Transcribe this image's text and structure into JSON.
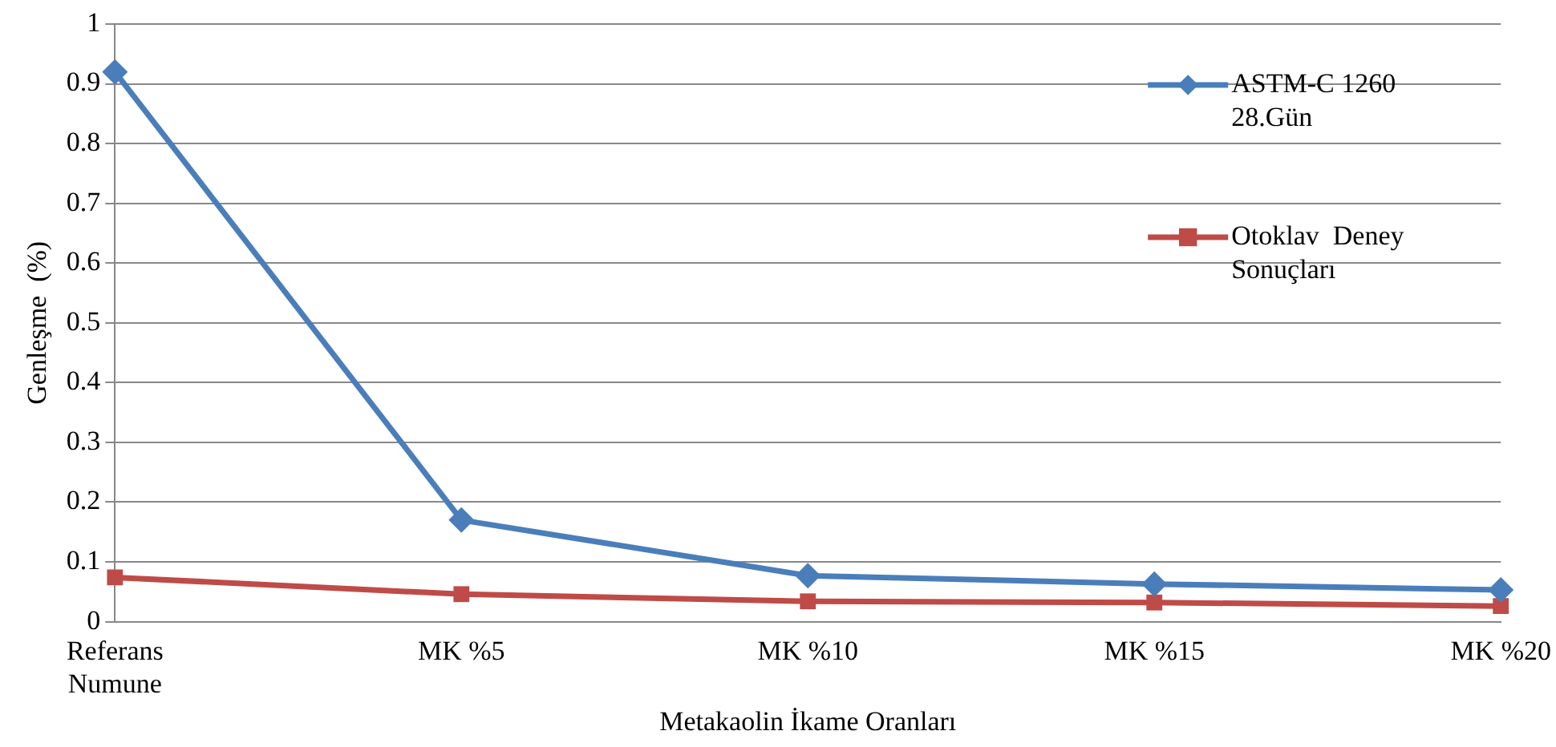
{
  "chart_data": {
    "type": "line",
    "xlabel": "Metakaolin İkame Oranları",
    "ylabel": "Genleşme  (%)",
    "categories": [
      "Referans Numune",
      "MK %5",
      "MK %10",
      "MK %15",
      "MK %20"
    ],
    "series": [
      {
        "name": "ASTM-C 1260 28.Gün",
        "color": "#4a7ebb",
        "marker": "diamond",
        "values": [
          0.92,
          0.17,
          0.077,
          0.063,
          0.053
        ]
      },
      {
        "name": "Otoklav  Deney Sonuçları",
        "color": "#be4b48",
        "marker": "square",
        "values": [
          0.074,
          0.046,
          0.034,
          0.032,
          0.026
        ]
      }
    ],
    "ylim": [
      0,
      1
    ],
    "yticks": [
      0,
      0.1,
      0.2,
      0.3,
      0.4,
      0.5,
      0.6,
      0.7,
      0.8,
      0.9,
      1
    ],
    "grid": "y",
    "legend": "right",
    "line_style": "solid"
  }
}
